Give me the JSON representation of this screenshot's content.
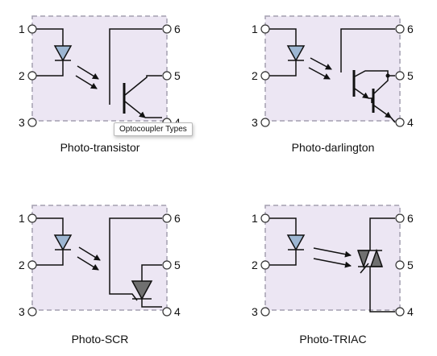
{
  "pin_labels": [
    "1",
    "2",
    "3",
    "4",
    "5",
    "6"
  ],
  "tooltip": "Optocoupler Types",
  "colors": {
    "package_fill": "#ece6f3",
    "package_border": "#a39fb0",
    "led_fill": "#9db6d2",
    "thyristor_fill": "#707070",
    "wire": "#111111"
  },
  "packages": [
    {
      "name": "Photo-transistor",
      "output": "transistor"
    },
    {
      "name": "Photo-darlington",
      "output": "darlington"
    },
    {
      "name": "Photo-SCR",
      "output": "scr"
    },
    {
      "name": "Photo-TRIAC",
      "output": "triac"
    }
  ]
}
